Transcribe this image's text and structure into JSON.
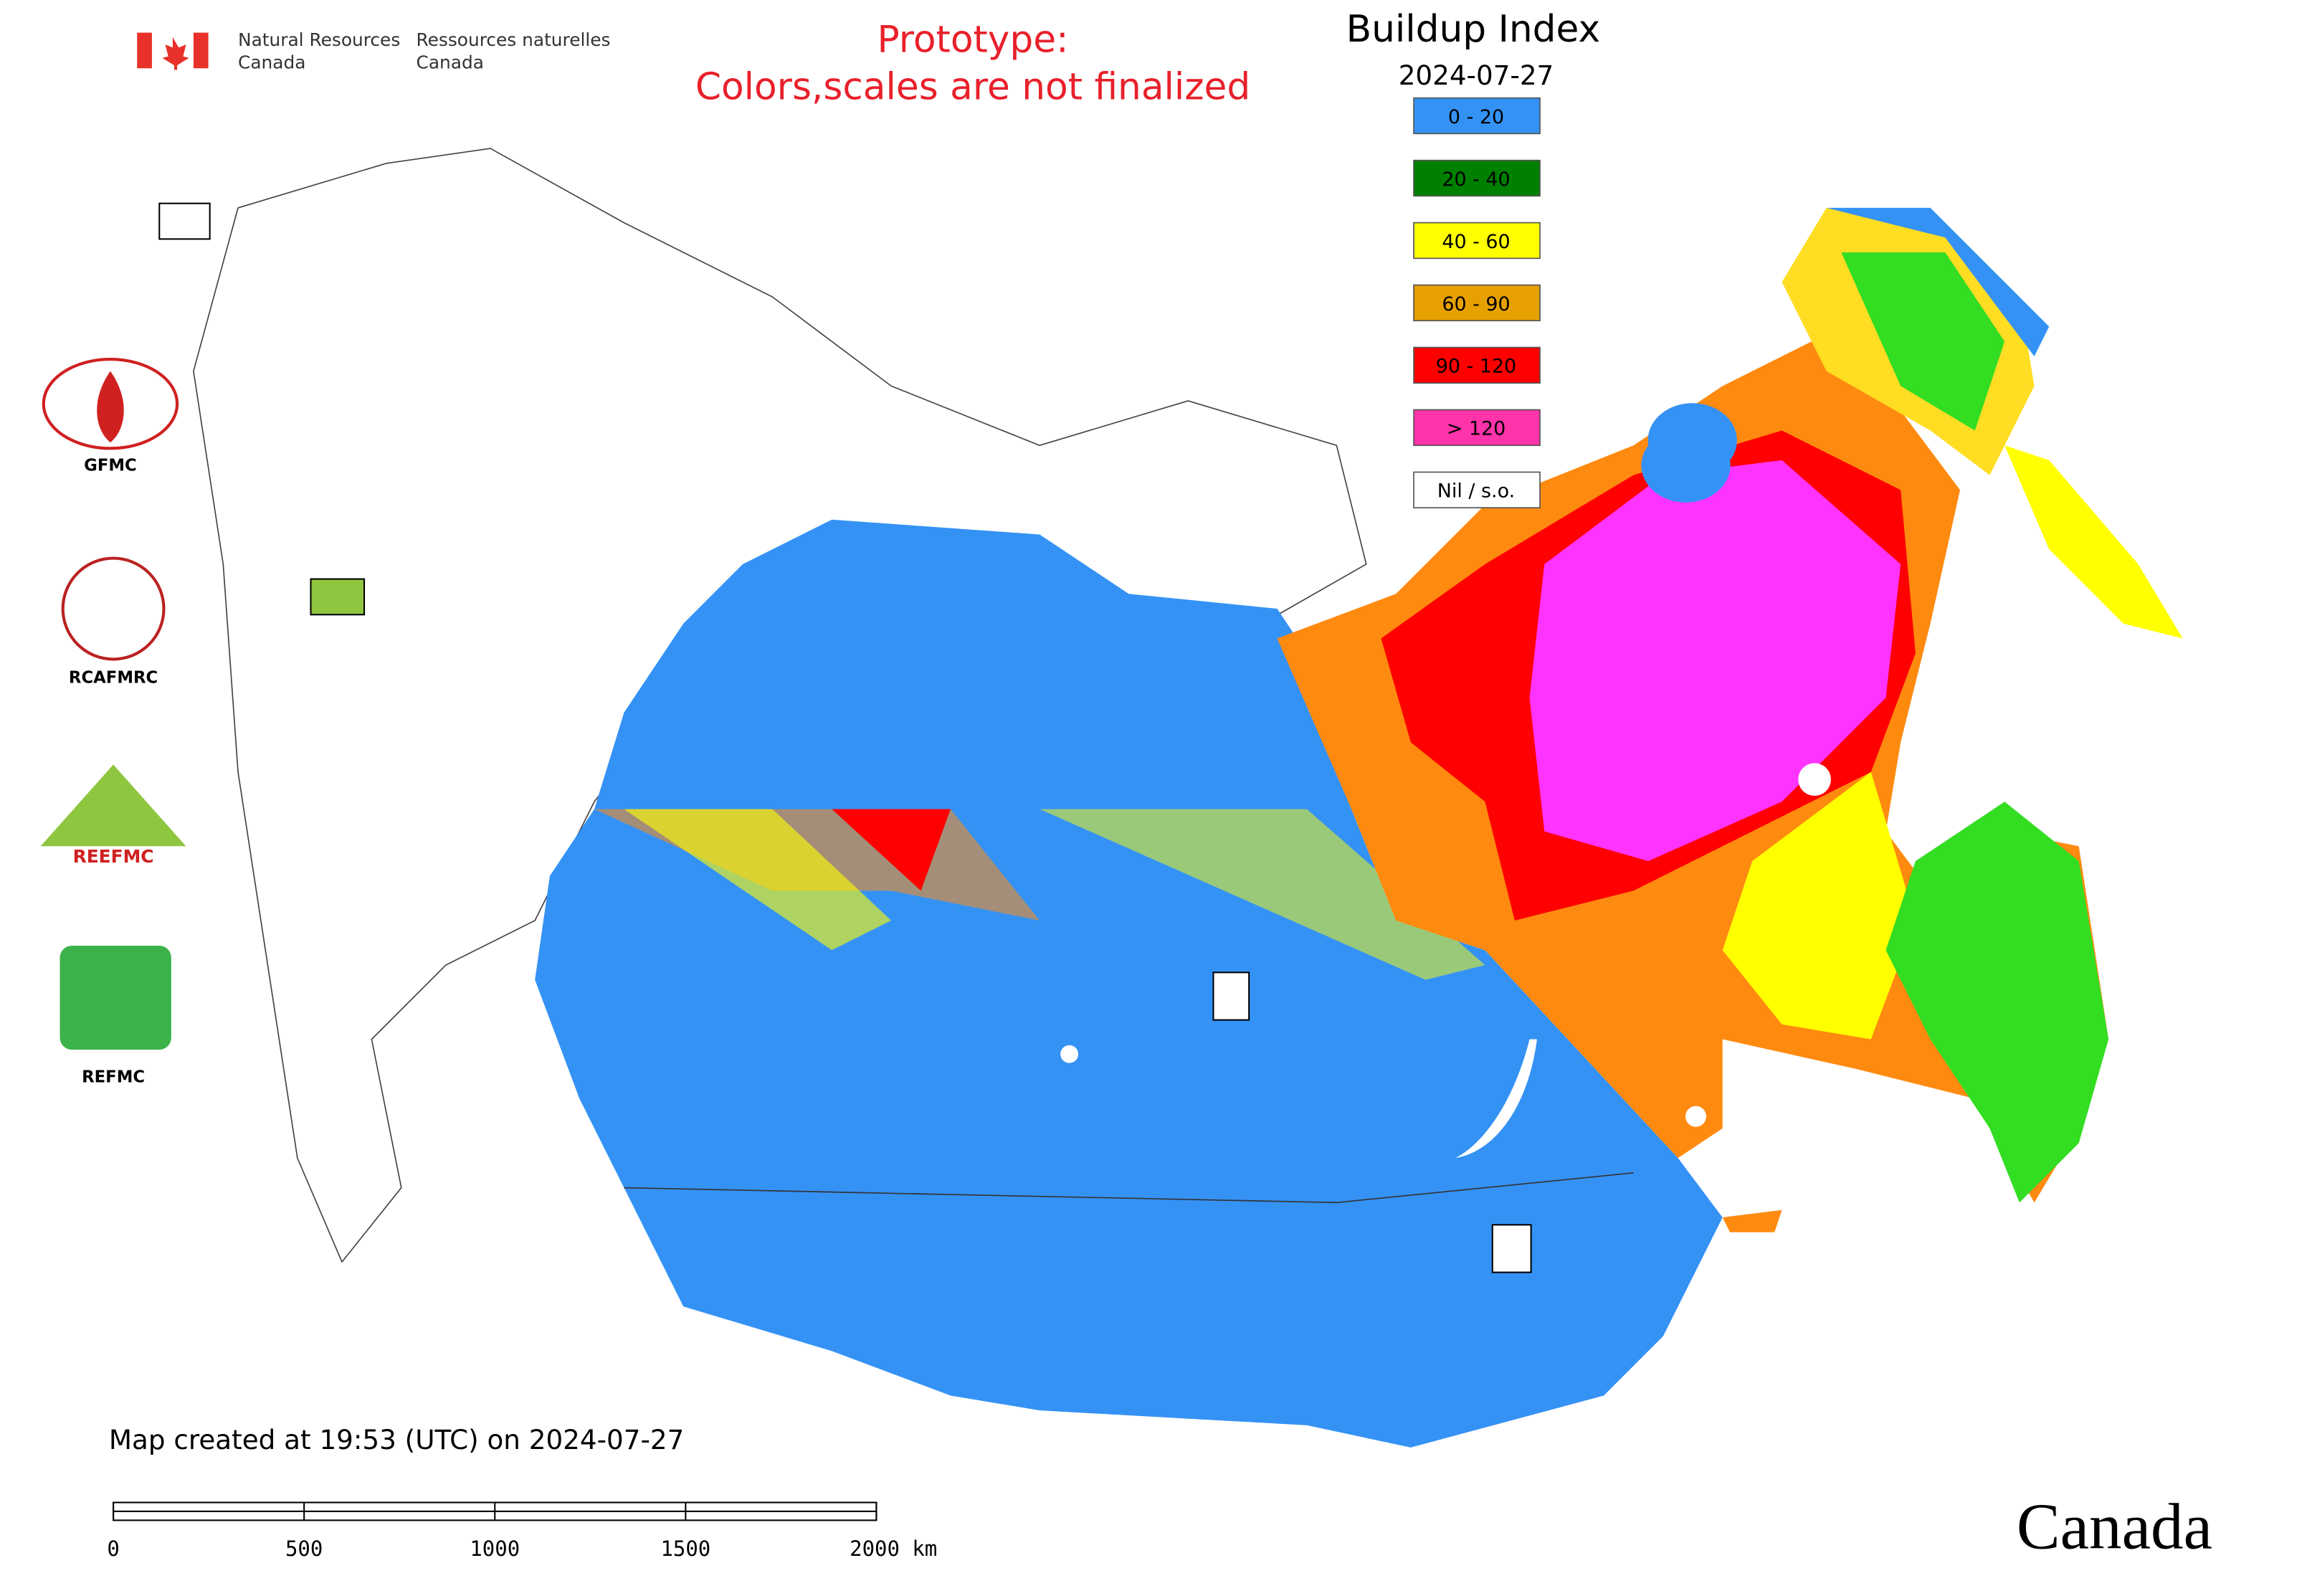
{
  "header": {
    "org_en_1": "Natural Resources",
    "org_en_2": "Canada",
    "org_fr_1": "Ressources naturelles",
    "org_fr_2": "Canada",
    "notice_1": "Prototype:",
    "notice_2": "Colors,scales are not finalized",
    "title": "Buildup Index",
    "date": "2024-07-27"
  },
  "legend": {
    "items": [
      {
        "label": "0 - 20",
        "color": "#3592f5"
      },
      {
        "label": "20 - 40",
        "color": "#008000"
      },
      {
        "label": "40 - 60",
        "color": "#ffff00"
      },
      {
        "label": "60 - 90",
        "color": "#e6a000"
      },
      {
        "label": "90 - 120",
        "color": "#ff0000"
      },
      {
        "label": "> 120",
        "color": "#ff33aa"
      },
      {
        "label": "Nil / s.o.",
        "color": "#ffffff"
      }
    ]
  },
  "logos": [
    "GFMC",
    "RCAFMRC",
    "REEFMC",
    "REFMC"
  ],
  "footer": {
    "created": "Map created at 19:53 (UTC) on 2024-07-27",
    "wordmark": "Canada"
  },
  "scale_bar": {
    "ticks": [
      0,
      500,
      1000,
      1500,
      {
        "value": 2000,
        "label": "2000 km"
      }
    ]
  }
}
